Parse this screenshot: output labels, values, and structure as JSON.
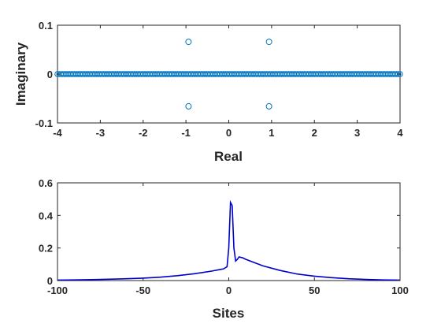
{
  "chart_data": [
    {
      "type": "scatter",
      "xlabel": "Real",
      "ylabel": "Imaginary",
      "xlim": [
        -4,
        4
      ],
      "ylim": [
        -0.1,
        0.1
      ],
      "xticks": [
        "-4",
        "-3",
        "-2",
        "-1",
        "0",
        "1",
        "2",
        "3",
        "4"
      ],
      "yticks": [
        "-0.1",
        "0",
        "0.1"
      ],
      "marker": "open-circle",
      "color": "#0072BD",
      "real_axis_points": {
        "x_range": [
          -4,
          4
        ],
        "y": 0,
        "count": 201
      },
      "points": [
        {
          "x": -0.94,
          "y": 0.066
        },
        {
          "x": 0.94,
          "y": 0.066
        },
        {
          "x": -0.94,
          "y": -0.066
        },
        {
          "x": 0.94,
          "y": -0.066
        }
      ]
    },
    {
      "type": "line",
      "xlabel": "Sites",
      "ylabel": "",
      "xlim": [
        -100,
        100
      ],
      "ylim": [
        0,
        0.6
      ],
      "xticks": [
        "-100",
        "-50",
        "0",
        "50",
        "100"
      ],
      "yticks": [
        "0",
        "0.2",
        "0.4",
        "0.6"
      ],
      "color": "#0000CC",
      "x": [
        -100,
        -90,
        -80,
        -70,
        -60,
        -50,
        -40,
        -30,
        -20,
        -15,
        -10,
        -5,
        -3,
        -1,
        0,
        1,
        2,
        3,
        4,
        5,
        6,
        8,
        10,
        15,
        20,
        30,
        40,
        50,
        60,
        70,
        80,
        90,
        100
      ],
      "y": [
        0.003,
        0.004,
        0.006,
        0.008,
        0.011,
        0.015,
        0.021,
        0.03,
        0.042,
        0.05,
        0.058,
        0.068,
        0.072,
        0.085,
        0.2,
        0.48,
        0.46,
        0.2,
        0.12,
        0.13,
        0.145,
        0.14,
        0.13,
        0.11,
        0.09,
        0.062,
        0.04,
        0.027,
        0.018,
        0.011,
        0.007,
        0.004,
        0.003
      ]
    }
  ]
}
